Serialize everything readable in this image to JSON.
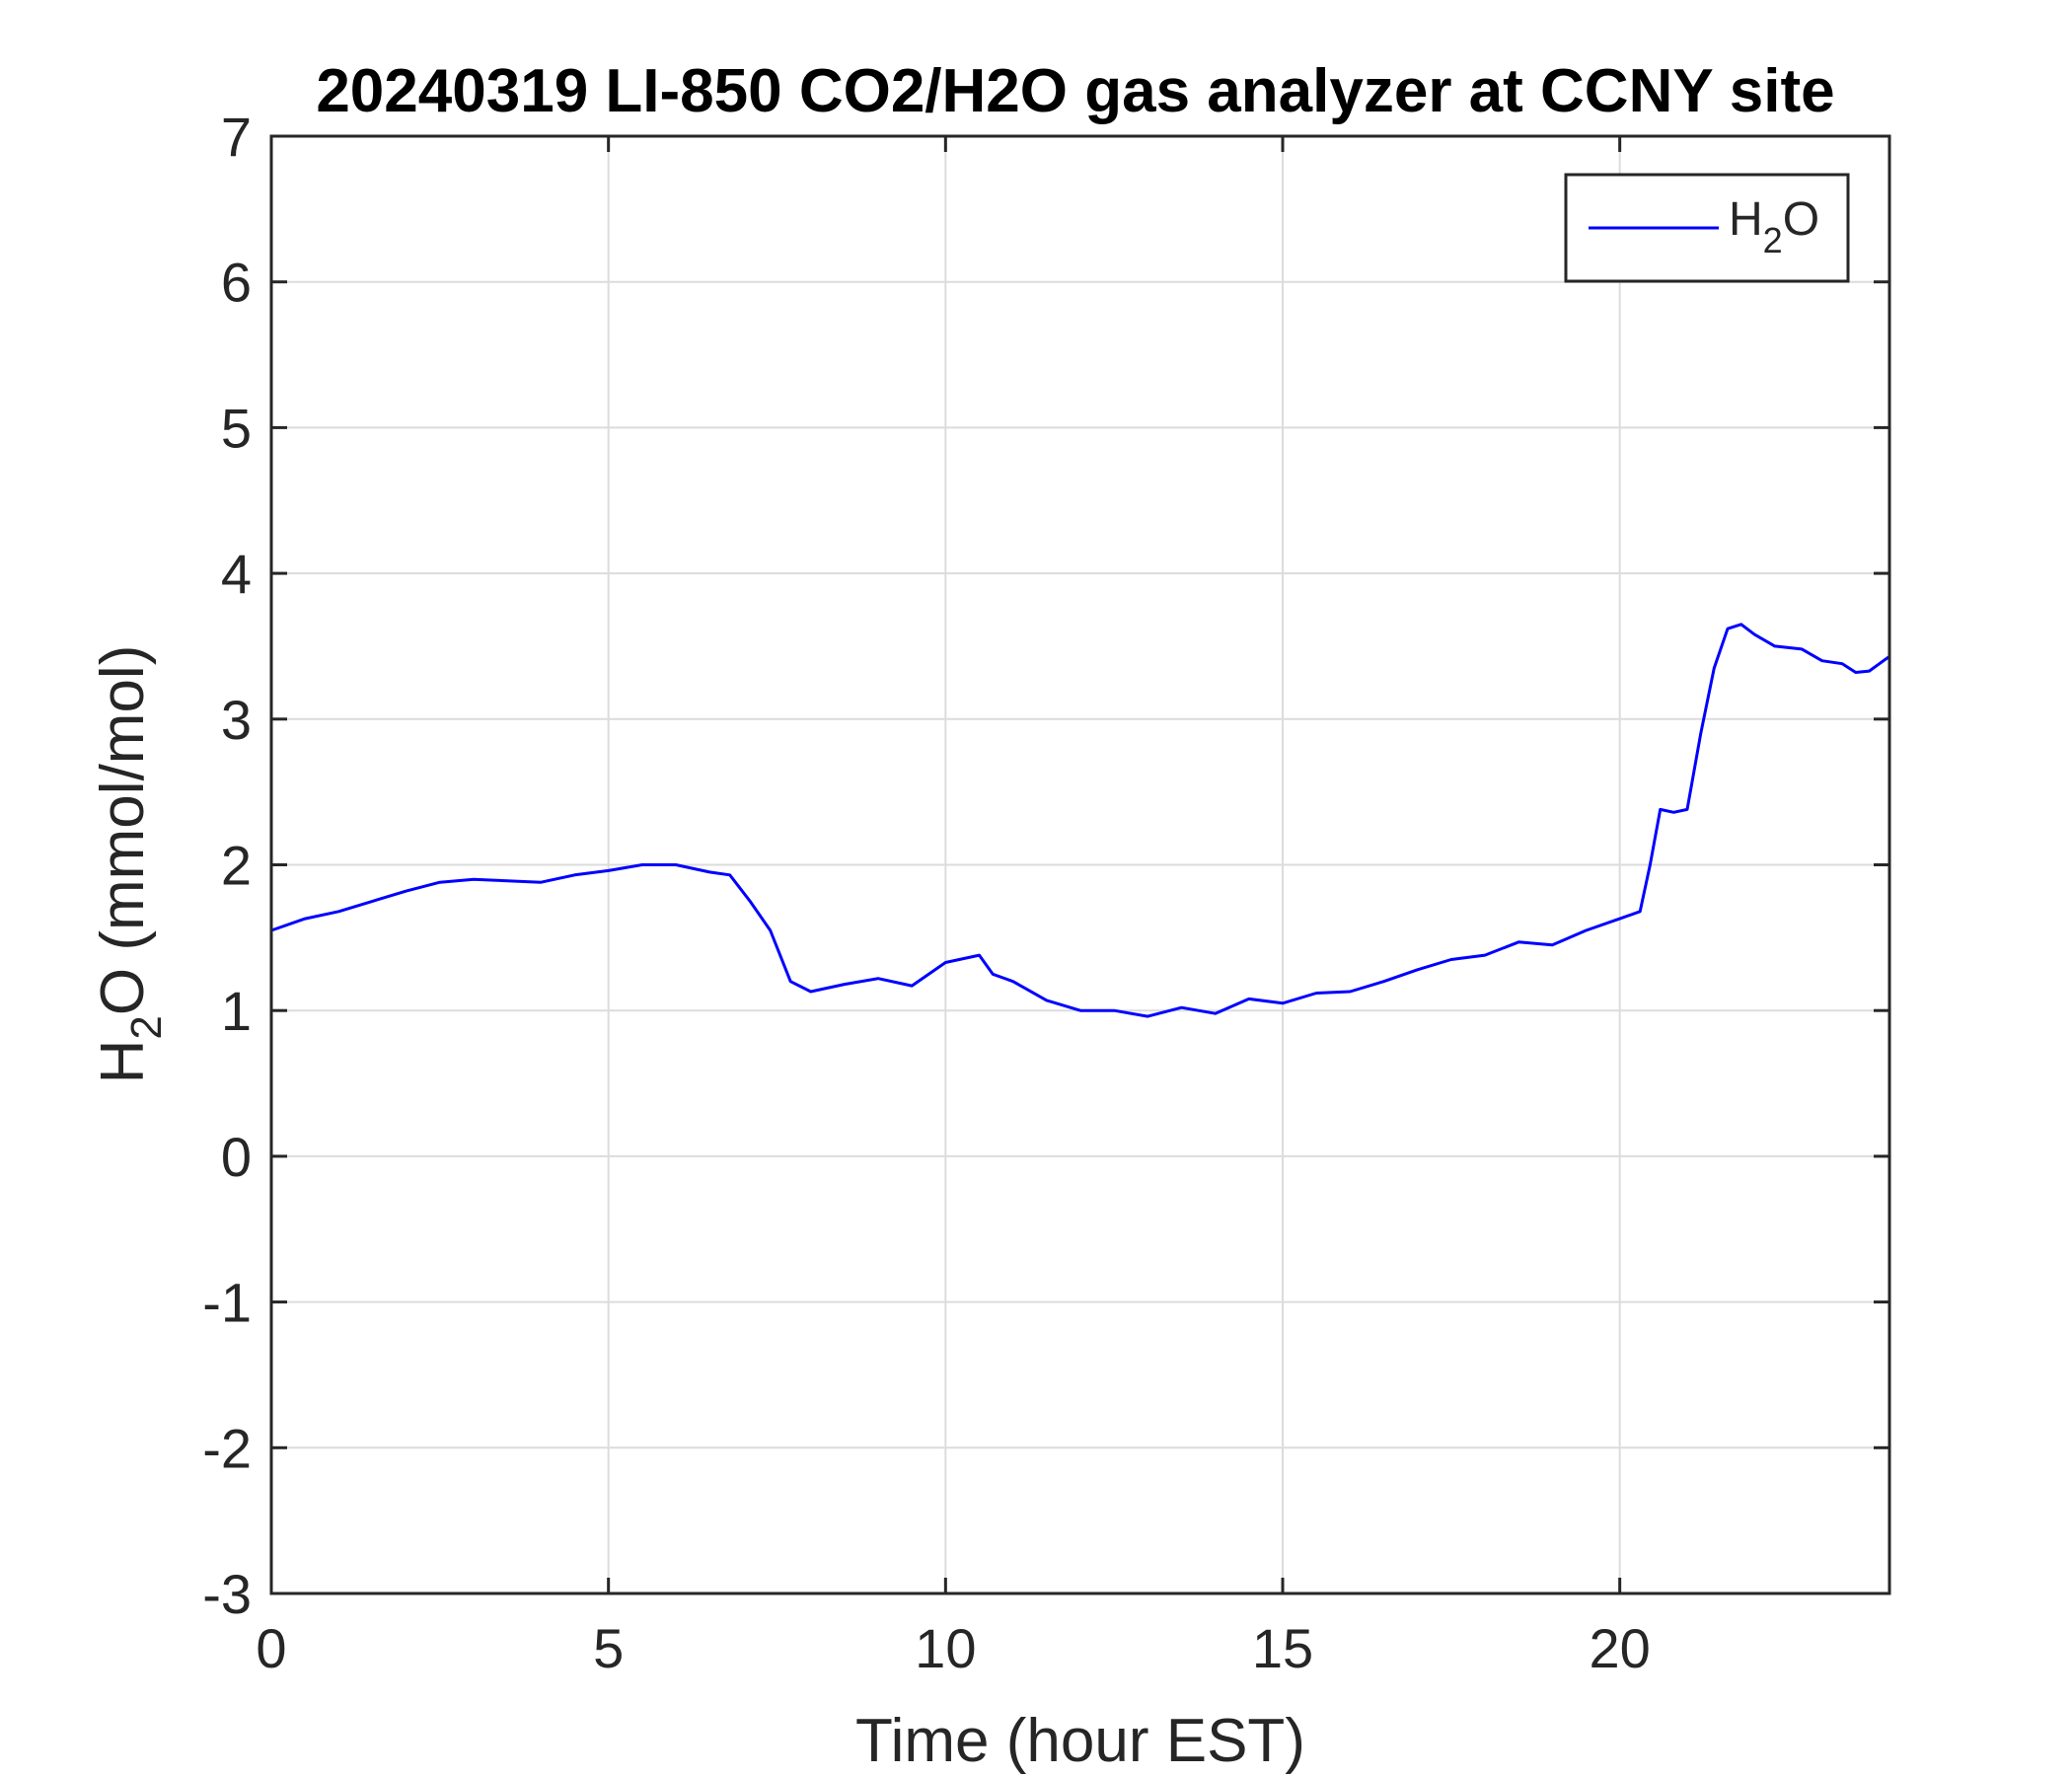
{
  "chart_data": {
    "type": "line",
    "title": "20240319 LI-850 CO2/H2O gas analyzer at CCNY site",
    "xlabel": "Time (hour EST)",
    "ylabel": {
      "base": "H",
      "sub": "2",
      "rest": "O (mmol/mol)"
    },
    "xlim": [
      0,
      24
    ],
    "ylim": [
      -3,
      7
    ],
    "xticks": [
      0,
      5,
      10,
      15,
      20
    ],
    "yticks": [
      -3,
      -2,
      -1,
      0,
      1,
      2,
      3,
      4,
      5,
      6,
      7
    ],
    "grid": true,
    "legend_position": "top-right",
    "series": [
      {
        "name": {
          "base": "H",
          "sub": "2",
          "rest": "O"
        },
        "color": "#0000ff",
        "x": [
          0,
          0.5,
          1,
          1.5,
          2,
          2.5,
          3,
          3.5,
          4,
          4.5,
          5,
          5.5,
          6,
          6.5,
          6.8,
          7.1,
          7.4,
          7.7,
          8,
          8.5,
          9,
          9.5,
          10,
          10.5,
          10.7,
          11,
          11.5,
          12,
          12.5,
          13,
          13.5,
          14,
          14.5,
          15,
          15.5,
          16,
          16.5,
          17,
          17.5,
          18,
          18.5,
          19,
          19.5,
          20,
          20.3,
          20.45,
          20.6,
          20.8,
          21,
          21.2,
          21.4,
          21.6,
          21.8,
          22,
          22.3,
          22.7,
          23,
          23.3,
          23.5,
          23.7,
          24
        ],
        "y": [
          1.55,
          1.63,
          1.68,
          1.75,
          1.82,
          1.88,
          1.9,
          1.89,
          1.88,
          1.93,
          1.96,
          2.0,
          2.0,
          1.95,
          1.93,
          1.75,
          1.55,
          1.2,
          1.13,
          1.18,
          1.22,
          1.17,
          1.33,
          1.38,
          1.25,
          1.2,
          1.07,
          1.0,
          1.0,
          0.96,
          1.02,
          0.98,
          1.08,
          1.05,
          1.12,
          1.13,
          1.2,
          1.28,
          1.35,
          1.38,
          1.47,
          1.45,
          1.55,
          1.63,
          1.68,
          2.0,
          2.38,
          2.36,
          2.38,
          2.9,
          3.35,
          3.62,
          3.65,
          3.58,
          3.5,
          3.48,
          3.4,
          3.38,
          3.32,
          3.33,
          3.43
        ]
      }
    ]
  }
}
